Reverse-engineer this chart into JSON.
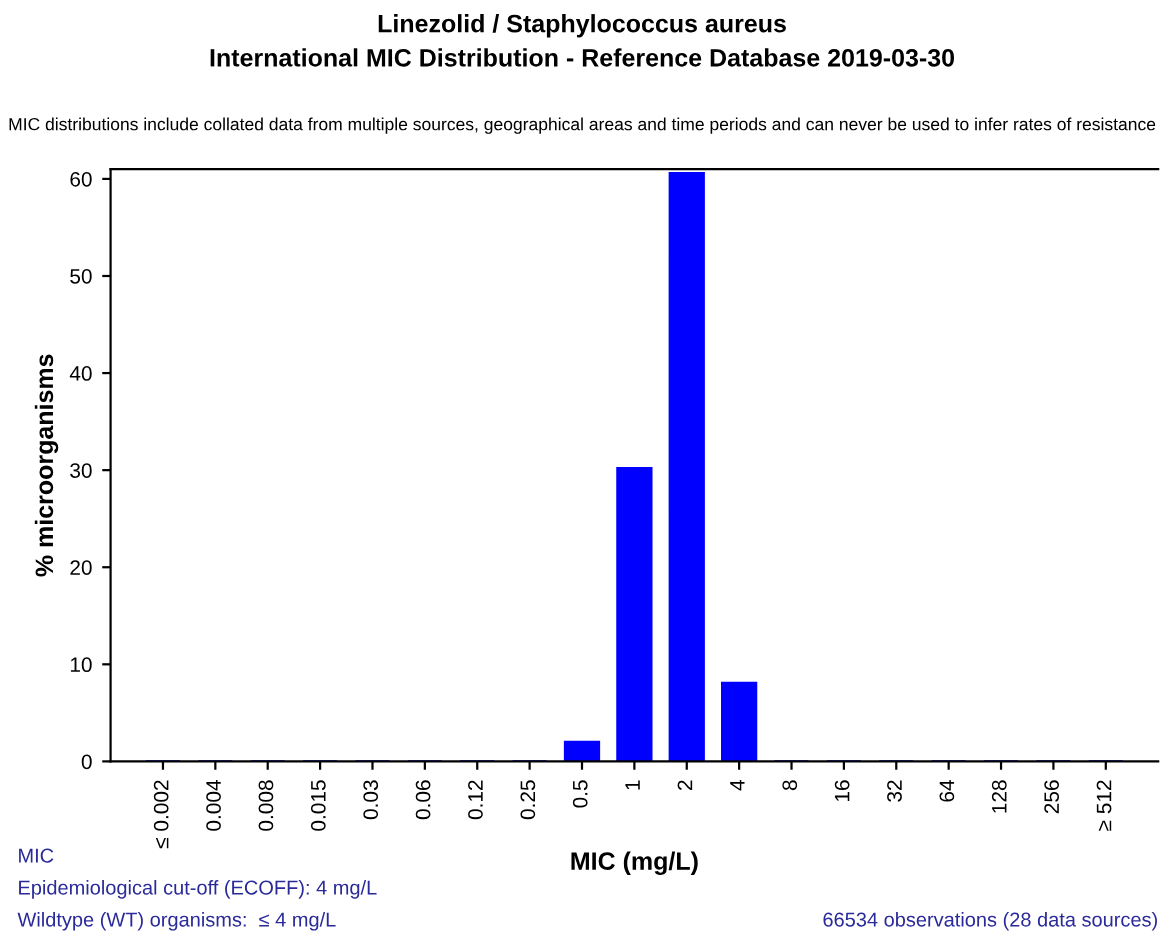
{
  "chart_data": {
    "type": "bar",
    "title": "Linezolid / Staphylococcus aureus\nInternational MIC Distribution - Reference Database 2019-03-30",
    "subtitle": "MIC distributions include collated data from multiple sources, geographical areas and time periods and can never be used to infer rates of resistance",
    "xlabel": "MIC (mg/L)",
    "ylabel": "% microorganisms",
    "categories": [
      "≤ 0.002",
      "0.004",
      "0.008",
      "0.015",
      "0.03",
      "0.06",
      "0.12",
      "0.25",
      "0.5",
      "1",
      "2",
      "4",
      "8",
      "16",
      "32",
      "64",
      "128",
      "256",
      "≥ 512"
    ],
    "values": [
      0,
      0,
      0,
      0,
      0,
      0,
      0,
      0,
      2,
      30.2,
      60.6,
      8.1,
      0,
      0,
      0,
      0,
      0,
      0,
      0
    ],
    "color": "#0000ff",
    "ylim": [
      0,
      61
    ],
    "yticks": [
      0,
      10,
      20,
      30,
      40,
      50,
      60
    ],
    "grid": false,
    "legend": false,
    "annotations": [
      "MIC",
      "Epidemiological cut-off (ECOFF): 4 mg/L",
      "Wildtype (WT) organisms:  ≤ 4 mg/L",
      "66534 observations (28 data sources)"
    ]
  }
}
